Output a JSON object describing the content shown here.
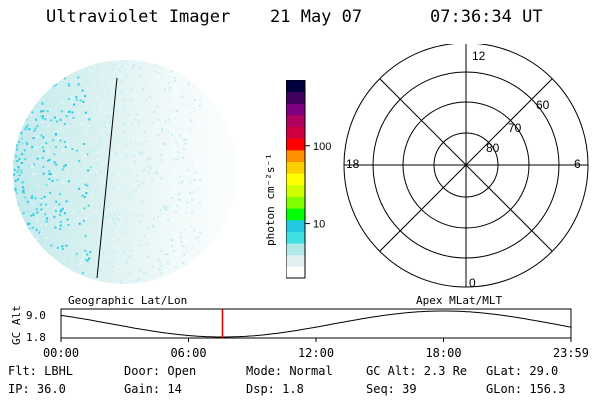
{
  "header": {
    "instrument": "Ultraviolet Imager",
    "date": "21 May 07",
    "time": "07:36:34 UT"
  },
  "colorbar": {
    "unit_label": "photon cm⁻²s⁻¹",
    "ticks": [
      {
        "value": 100,
        "label": "100"
      },
      {
        "value": 10,
        "label": "10"
      }
    ],
    "scale": "log",
    "range": [
      2,
      700
    ],
    "colors": [
      "#ffffff",
      "#e0f0f0",
      "#b0e8e8",
      "#40e0e0",
      "#20c8e0",
      "#00ff00",
      "#80ff00",
      "#d0ff00",
      "#ffff00",
      "#ffd000",
      "#ff9000",
      "#ff0000",
      "#d00040",
      "#b00060",
      "#800080",
      "#400060",
      "#000040"
    ]
  },
  "polar_grid": {
    "mlt_labels": {
      "top": "12",
      "left": "18",
      "right": "6",
      "bottom": "0"
    },
    "lat_labels": [
      "60",
      "70",
      "80"
    ]
  },
  "timeline": {
    "ylabel": "GC Alt",
    "y_ticks": [
      "9.0",
      "1.8"
    ],
    "left_title": "Geographic Lat/Lon",
    "right_title": "Apex MLat/MLT",
    "x_ticks": [
      "00:00",
      "06:00",
      "12:00",
      "18:00",
      "23:59"
    ],
    "current_time_hours": 7.6,
    "marker_color": "#cc0000"
  },
  "info": {
    "flt": "Flt: LBHL",
    "door": "Door: Open",
    "mode": "Mode: Normal",
    "gcalt": "GC Alt: 2.3 Re",
    "glat": "GLat: 29.0",
    "ip": "IP: 36.0",
    "gain": "Gain: 14",
    "dsp": "Dsp:   1.8",
    "seq": "Seq: 39",
    "glon": "GLon: 156.3"
  }
}
